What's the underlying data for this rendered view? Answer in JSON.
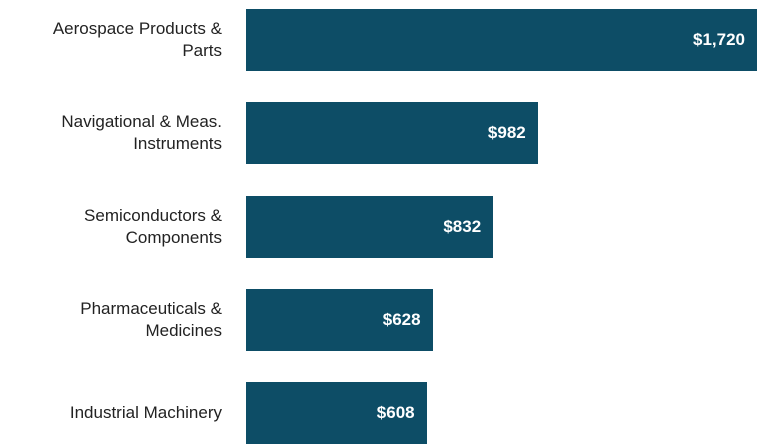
{
  "chart_data": {
    "type": "bar",
    "orientation": "horizontal",
    "categories": [
      "Aerospace Products & Parts",
      "Navigational & Meas. Instruments",
      "Semiconductors & Components",
      "Pharmaceuticals & Medicines",
      "Industrial Machinery"
    ],
    "values": [
      1720,
      982,
      832,
      628,
      608
    ],
    "value_labels": [
      "$1,720",
      "$982",
      "$832",
      "$628",
      "$608"
    ],
    "color": "#0d4d66"
  }
}
